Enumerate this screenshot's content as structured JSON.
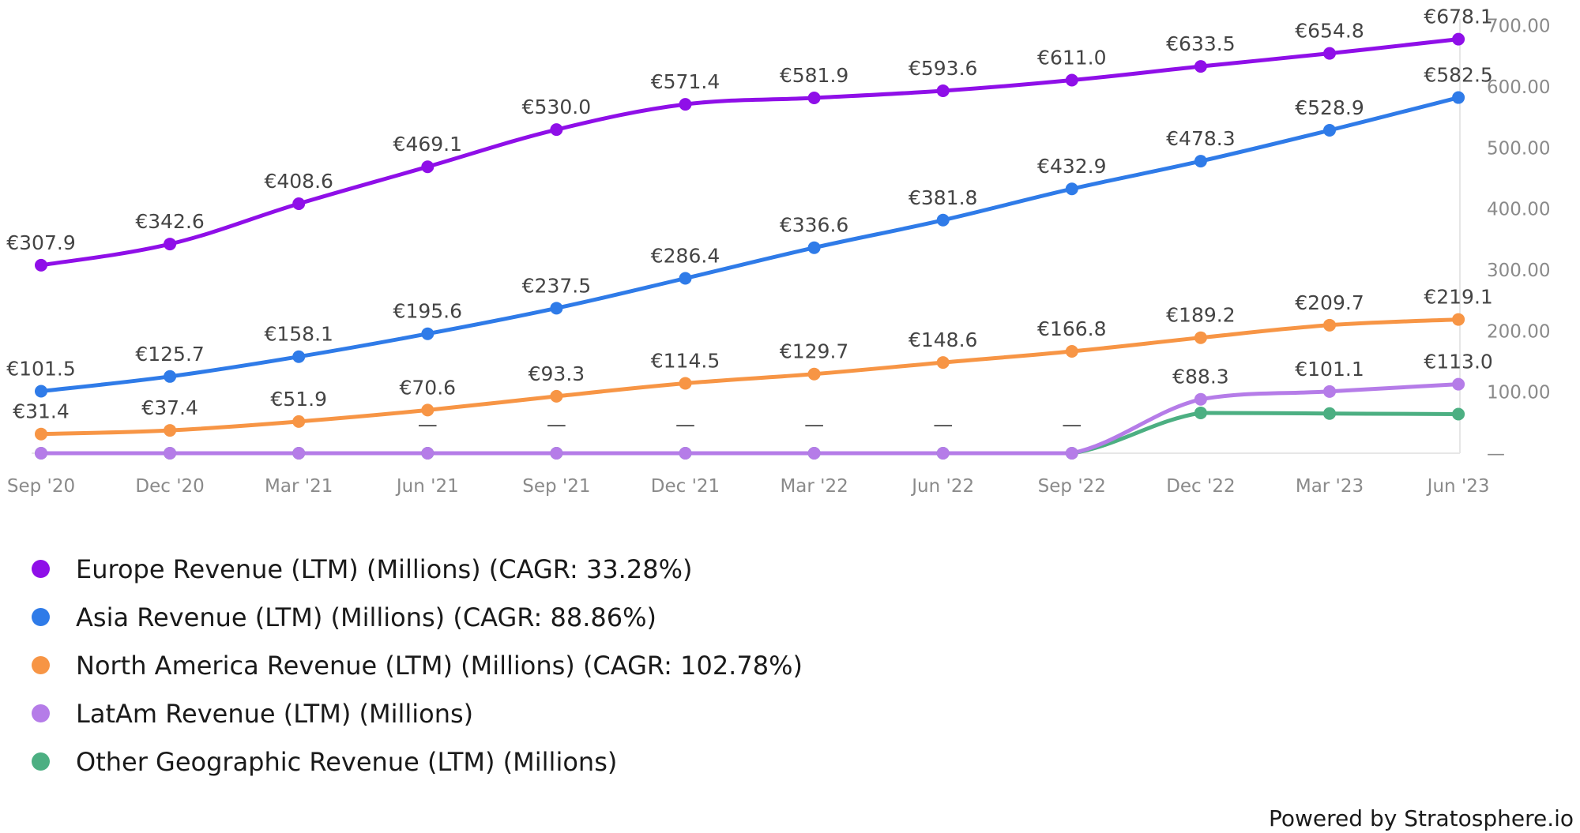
{
  "chart_data": {
    "type": "line",
    "title": "",
    "xlabel": "",
    "ylabel": "",
    "categories": [
      "Sep '20",
      "Dec '20",
      "Mar '21",
      "Jun '21",
      "Sep '21",
      "Dec '21",
      "Mar '22",
      "Jun '22",
      "Sep '22",
      "Dec '22",
      "Mar '23",
      "Jun '23"
    ],
    "ylim": [
      0,
      700
    ],
    "yticks": [
      {
        "value": 700,
        "label": "700.00"
      },
      {
        "value": 600,
        "label": "600.00"
      },
      {
        "value": 500,
        "label": "500.00"
      },
      {
        "value": 400,
        "label": "400.00"
      },
      {
        "value": 300,
        "label": "300.00"
      },
      {
        "value": 200,
        "label": "200.00"
      },
      {
        "value": 100,
        "label": "100.00"
      },
      {
        "value": 0,
        "label": "—"
      }
    ],
    "y_axis_position": "right",
    "legend_position": "bottom-left",
    "grid": false,
    "series": [
      {
        "name": "Europe Revenue (LTM) (Millions) (CAGR: 33.28%)",
        "color": "#8f0fe8",
        "values": [
          307.9,
          342.6,
          408.6,
          469.1,
          530.0,
          571.4,
          581.9,
          593.6,
          611.0,
          633.5,
          654.8,
          678.1
        ],
        "labels": [
          "€307.9",
          "€342.6",
          "€408.6",
          "€469.1",
          "€530.0",
          "€571.4",
          "€581.9",
          "€593.6",
          "€611.0",
          "€633.5",
          "€654.8",
          "€678.1"
        ]
      },
      {
        "name": "Asia Revenue (LTM) (Millions) (CAGR: 88.86%)",
        "color": "#2f7be8",
        "values": [
          101.5,
          125.7,
          158.1,
          195.6,
          237.5,
          286.4,
          336.6,
          381.8,
          432.9,
          478.3,
          528.9,
          582.5
        ],
        "labels": [
          "€101.5",
          "€125.7",
          "€158.1",
          "€195.6",
          "€237.5",
          "€286.4",
          "€336.6",
          "€381.8",
          "€432.9",
          "€478.3",
          "€528.9",
          "€582.5"
        ]
      },
      {
        "name": "North America Revenue (LTM) (Millions) (CAGR: 102.78%)",
        "color": "#f79545",
        "values": [
          31.4,
          37.4,
          51.9,
          70.6,
          93.3,
          114.5,
          129.7,
          148.6,
          166.8,
          189.2,
          209.7,
          219.1
        ],
        "labels": [
          "€31.4",
          "€37.4",
          "€51.9",
          "€70.6",
          "€93.3",
          "€114.5",
          "€129.7",
          "€148.6",
          "€166.8",
          "€189.2",
          "€209.7",
          "€219.1"
        ]
      },
      {
        "name": "LatAm Revenue (LTM) (Millions)",
        "color": "#b57ce8",
        "values": [
          0,
          0,
          0,
          0,
          0,
          0,
          0,
          0,
          0,
          88.3,
          101.1,
          113.0
        ],
        "labels": [
          "",
          "",
          "",
          "—",
          "—",
          "—",
          "—",
          "—",
          "—",
          "€88.3",
          "€101.1",
          "€113.0"
        ]
      },
      {
        "name": "Other Geographic Revenue (LTM) (Millions)",
        "color": "#4caf82",
        "values": [
          0,
          0,
          0,
          0,
          0,
          0,
          0,
          0,
          0,
          66,
          65,
          64
        ],
        "labels": [
          "",
          "",
          "",
          "",
          "",
          "",
          "",
          "",
          "",
          "",
          "",
          ""
        ]
      }
    ]
  },
  "footer": {
    "text": "Powered by Stratosphere.io"
  }
}
